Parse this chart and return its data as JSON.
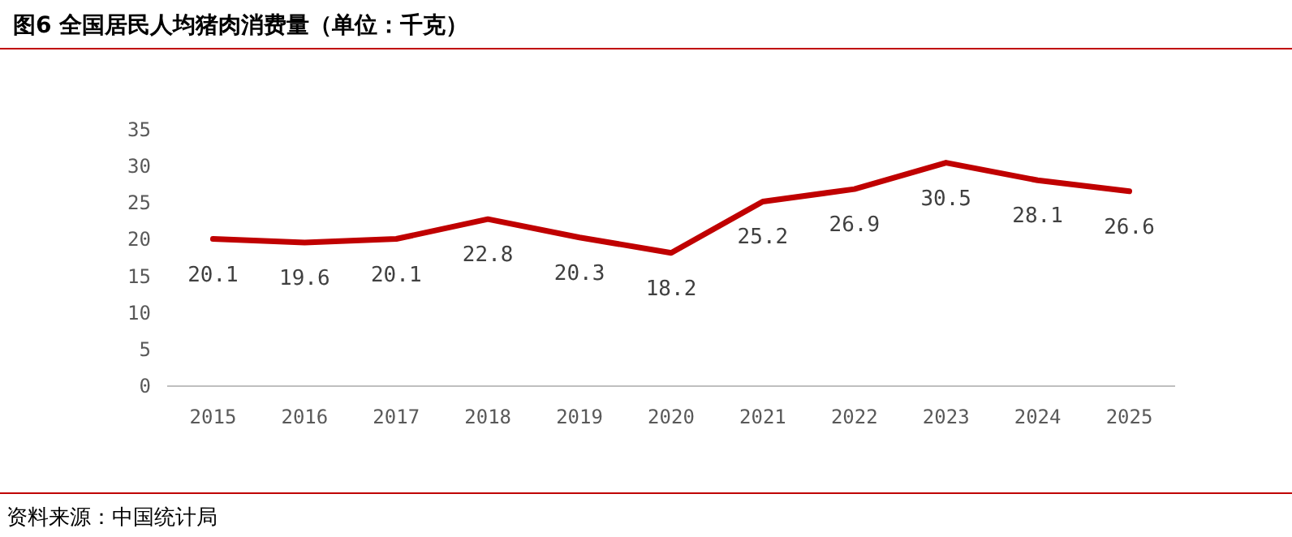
{
  "chart_data": {
    "type": "line",
    "title": "图6  全国居民人均猪肉消费量（单位：千克）",
    "categories": [
      "2015",
      "2016",
      "2017",
      "2018",
      "2019",
      "2020",
      "2021",
      "2022",
      "2023",
      "2024",
      "2025"
    ],
    "values": [
      20.1,
      19.6,
      20.1,
      22.8,
      20.3,
      18.2,
      25.2,
      26.9,
      30.5,
      28.1,
      26.6
    ],
    "color": "#c00000",
    "ylim": [
      0,
      35
    ],
    "yticks": [
      0,
      5,
      10,
      15,
      20,
      25,
      30,
      35
    ],
    "data_labels": true,
    "annotations": [
      "资料来源：中国统计局"
    ]
  }
}
